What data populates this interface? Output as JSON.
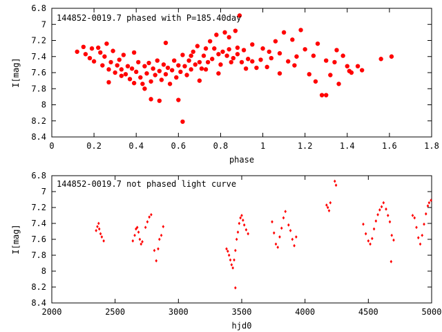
{
  "chart_data": [
    {
      "type": "scatter",
      "title": "144852-0019.7 phased with P=185.40day",
      "xlabel": "phase",
      "ylabel": "I[mag]",
      "xlim": [
        0,
        1.8
      ],
      "ylim": [
        8.4,
        6.8
      ],
      "y_inverted": true,
      "grid": false,
      "xticks": [
        "0",
        "0.2",
        "0.4",
        "0.6",
        "0.8",
        "1",
        "1.2",
        "1.4",
        "1.6",
        "1.8"
      ],
      "yticks": [
        "6.8",
        "7",
        "7.2",
        "7.4",
        "7.6",
        "7.8",
        "8",
        "8.2",
        "8.4"
      ],
      "series": [
        {
          "color": "#ff0000",
          "marker": "filled-circle",
          "points": [
            [
              0.12,
              7.34
            ],
            [
              0.15,
              7.28
            ],
            [
              0.16,
              7.37
            ],
            [
              0.18,
              7.42
            ],
            [
              0.19,
              7.3
            ],
            [
              0.2,
              7.46
            ],
            [
              0.22,
              7.29
            ],
            [
              0.23,
              7.35
            ],
            [
              0.24,
              7.51
            ],
            [
              0.25,
              7.4
            ],
            [
              0.26,
              7.24
            ],
            [
              0.27,
              7.56
            ],
            [
              0.28,
              7.47
            ],
            [
              0.29,
              7.33
            ],
            [
              0.3,
              7.6
            ],
            [
              0.31,
              7.51
            ],
            [
              0.32,
              7.44
            ],
            [
              0.33,
              7.56
            ],
            [
              0.34,
              7.38
            ],
            [
              0.35,
              7.62
            ],
            [
              0.36,
              7.52
            ],
            [
              0.37,
              7.68
            ],
            [
              0.38,
              7.55
            ],
            [
              0.39,
              7.73
            ],
            [
              0.4,
              7.59
            ],
            [
              0.41,
              7.47
            ],
            [
              0.42,
              7.66
            ],
            [
              0.43,
              7.74
            ],
            [
              0.44,
              7.52
            ],
            [
              0.45,
              7.61
            ],
            [
              0.46,
              7.48
            ],
            [
              0.47,
              7.71
            ],
            [
              0.48,
              7.55
            ],
            [
              0.49,
              7.63
            ],
            [
              0.5,
              7.45
            ],
            [
              0.51,
              7.58
            ],
            [
              0.52,
              7.69
            ],
            [
              0.53,
              7.5
            ],
            [
              0.54,
              7.62
            ],
            [
              0.55,
              7.54
            ],
            [
              0.56,
              7.74
            ],
            [
              0.57,
              7.57
            ],
            [
              0.58,
              7.45
            ],
            [
              0.59,
              7.66
            ],
            [
              0.6,
              7.51
            ],
            [
              0.61,
              7.59
            ],
            [
              0.62,
              7.38
            ],
            [
              0.63,
              7.52
            ],
            [
              0.64,
              7.63
            ],
            [
              0.65,
              7.45
            ],
            [
              0.66,
              7.56
            ],
            [
              0.67,
              7.34
            ],
            [
              0.68,
              7.5
            ],
            [
              0.69,
              7.27
            ],
            [
              0.7,
              7.47
            ],
            [
              0.71,
              7.55
            ],
            [
              0.72,
              7.39
            ],
            [
              0.73,
              7.3
            ],
            [
              0.74,
              7.47
            ],
            [
              0.75,
              7.21
            ],
            [
              0.76,
              7.43
            ],
            [
              0.77,
              7.3
            ],
            [
              0.78,
              7.13
            ],
            [
              0.79,
              7.37
            ],
            [
              0.8,
              7.5
            ],
            [
              0.81,
              7.34
            ],
            [
              0.82,
              7.1
            ],
            [
              0.83,
              7.39
            ],
            [
              0.84,
              7.31
            ],
            [
              0.85,
              7.47
            ],
            [
              0.86,
              7.42
            ],
            [
              0.87,
              7.08
            ],
            [
              0.88,
              7.37
            ],
            [
              0.89,
              6.89
            ],
            [
              0.9,
              7.47
            ],
            [
              0.91,
              7.32
            ],
            [
              0.93,
              7.43
            ],
            [
              0.95,
              7.25
            ],
            [
              0.97,
              7.54
            ],
            [
              0.99,
              7.44
            ],
            [
              1.0,
              7.3
            ],
            [
              1.02,
              7.53
            ],
            [
              1.04,
              7.42
            ],
            [
              1.06,
              7.21
            ],
            [
              1.08,
              7.36
            ],
            [
              1.1,
              7.1
            ],
            [
              1.12,
              7.46
            ],
            [
              1.14,
              7.19
            ],
            [
              1.16,
              7.4
            ],
            [
              1.18,
              7.07
            ],
            [
              1.2,
              7.31
            ],
            [
              1.22,
              7.62
            ],
            [
              1.24,
              7.39
            ],
            [
              1.26,
              7.24
            ],
            [
              1.28,
              7.88
            ],
            [
              1.3,
              7.45
            ],
            [
              1.32,
              7.63
            ],
            [
              1.34,
              7.47
            ],
            [
              1.36,
              7.74
            ],
            [
              1.38,
              7.39
            ],
            [
              1.4,
              7.52
            ],
            [
              1.42,
              7.6
            ],
            [
              1.45,
              7.52
            ],
            [
              1.47,
              7.57
            ],
            [
              1.56,
              7.43
            ],
            [
              1.61,
              7.4
            ],
            [
              0.62,
              8.21
            ],
            [
              0.51,
              7.95
            ],
            [
              0.47,
              7.93
            ],
            [
              0.54,
              7.23
            ],
            [
              0.39,
              7.35
            ],
            [
              0.33,
              7.64
            ],
            [
              0.6,
              7.94
            ],
            [
              0.7,
              7.7
            ],
            [
              0.92,
              7.55
            ],
            [
              1.03,
              7.34
            ],
            [
              1.15,
              7.51
            ],
            [
              1.25,
              7.71
            ],
            [
              1.35,
              7.32
            ],
            [
              0.84,
              7.16
            ],
            [
              0.95,
              7.46
            ],
            [
              1.08,
              7.61
            ],
            [
              0.73,
              7.56
            ],
            [
              0.66,
              7.39
            ],
            [
              0.44,
              7.8
            ],
            [
              0.27,
              7.72
            ],
            [
              0.79,
              7.61
            ],
            [
              0.88,
              7.29
            ],
            [
              1.3,
              7.88
            ],
            [
              1.41,
              7.58
            ]
          ]
        }
      ]
    },
    {
      "type": "scatter",
      "title": "144852-0019.7 not phased light curve",
      "xlabel": "hjd0",
      "ylabel": "I[mag]",
      "xlim": [
        2000,
        5000
      ],
      "ylim": [
        8.4,
        6.8
      ],
      "y_inverted": true,
      "grid": false,
      "xticks": [
        "2000",
        "2500",
        "3000",
        "3500",
        "4000",
        "4500",
        "5000"
      ],
      "yticks": [
        "6.8",
        "7",
        "7.2",
        "7.4",
        "7.6",
        "7.8",
        "8",
        "8.2",
        "8.4"
      ],
      "series": [
        {
          "color": "#ff0000",
          "marker": "small-diamond",
          "points": [
            [
              2350,
              7.49
            ],
            [
              2360,
              7.44
            ],
            [
              2370,
              7.4
            ],
            [
              2375,
              7.47
            ],
            [
              2385,
              7.53
            ],
            [
              2395,
              7.57
            ],
            [
              2410,
              7.62
            ],
            [
              2640,
              7.62
            ],
            [
              2655,
              7.55
            ],
            [
              2665,
              7.47
            ],
            [
              2675,
              7.45
            ],
            [
              2685,
              7.51
            ],
            [
              2695,
              7.6
            ],
            [
              2705,
              7.66
            ],
            [
              2715,
              7.63
            ],
            [
              2740,
              7.45
            ],
            [
              2755,
              7.38
            ],
            [
              2770,
              7.32
            ],
            [
              2785,
              7.29
            ],
            [
              2810,
              7.74
            ],
            [
              2825,
              7.87
            ],
            [
              2840,
              7.72
            ],
            [
              2850,
              7.6
            ],
            [
              2865,
              7.55
            ],
            [
              2880,
              7.44
            ],
            [
              3380,
              7.72
            ],
            [
              3390,
              7.75
            ],
            [
              3400,
              7.8
            ],
            [
              3410,
              7.86
            ],
            [
              3420,
              7.92
            ],
            [
              3430,
              7.96
            ],
            [
              3440,
              7.86
            ],
            [
              3450,
              7.74
            ],
            [
              3460,
              7.6
            ],
            [
              3470,
              7.51
            ],
            [
              3480,
              7.4
            ],
            [
              3490,
              7.33
            ],
            [
              3500,
              7.3
            ],
            [
              3510,
              7.36
            ],
            [
              3520,
              7.42
            ],
            [
              3535,
              7.48
            ],
            [
              3550,
              7.53
            ],
            [
              3450,
              8.21
            ],
            [
              3740,
              7.38
            ],
            [
              3755,
              7.52
            ],
            [
              3770,
              7.66
            ],
            [
              3785,
              7.7
            ],
            [
              3800,
              7.57
            ],
            [
              3815,
              7.46
            ],
            [
              3830,
              7.33
            ],
            [
              3845,
              7.25
            ],
            [
              3870,
              7.42
            ],
            [
              3885,
              7.49
            ],
            [
              3900,
              7.6
            ],
            [
              3915,
              7.68
            ],
            [
              3930,
              7.57
            ],
            [
              4170,
              7.17
            ],
            [
              4180,
              7.2
            ],
            [
              4190,
              7.24
            ],
            [
              4200,
              7.14
            ],
            [
              4235,
              6.87
            ],
            [
              4245,
              6.92
            ],
            [
              4460,
              7.41
            ],
            [
              4480,
              7.53
            ],
            [
              4500,
              7.62
            ],
            [
              4515,
              7.66
            ],
            [
              4530,
              7.59
            ],
            [
              4545,
              7.47
            ],
            [
              4560,
              7.37
            ],
            [
              4575,
              7.29
            ],
            [
              4590,
              7.23
            ],
            [
              4605,
              7.19
            ],
            [
              4620,
              7.14
            ],
            [
              4640,
              7.22
            ],
            [
              4655,
              7.3
            ],
            [
              4670,
              7.38
            ],
            [
              4685,
              7.55
            ],
            [
              4700,
              7.61
            ],
            [
              4680,
              7.88
            ],
            [
              4850,
              7.3
            ],
            [
              4865,
              7.33
            ],
            [
              4880,
              7.45
            ],
            [
              4895,
              7.58
            ],
            [
              4910,
              7.66
            ],
            [
              4925,
              7.55
            ],
            [
              4940,
              7.41
            ],
            [
              4955,
              7.28
            ],
            [
              4970,
              7.18
            ],
            [
              4980,
              7.14
            ],
            [
              4995,
              7.11
            ]
          ]
        }
      ]
    }
  ]
}
